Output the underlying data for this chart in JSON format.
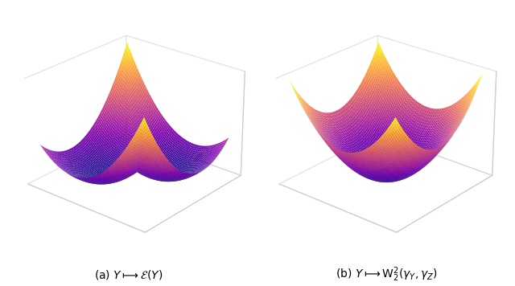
{
  "title_left": "(a) $Y \\longmapsto \\mathcal{E}(Y)$",
  "title_right": "(b) $Y \\longmapsto \\mathrm{W}_2^2(\\gamma_Y, \\gamma_Z)$",
  "xlim": [
    -2.5,
    2.5
  ],
  "ylim": [
    -2.5,
    2.5
  ],
  "n_points": 80,
  "elev": 25,
  "azim": -50,
  "colormap": "plasma",
  "background_color": "white",
  "grid_color": "#cccccc",
  "caption_fontsize": 10
}
